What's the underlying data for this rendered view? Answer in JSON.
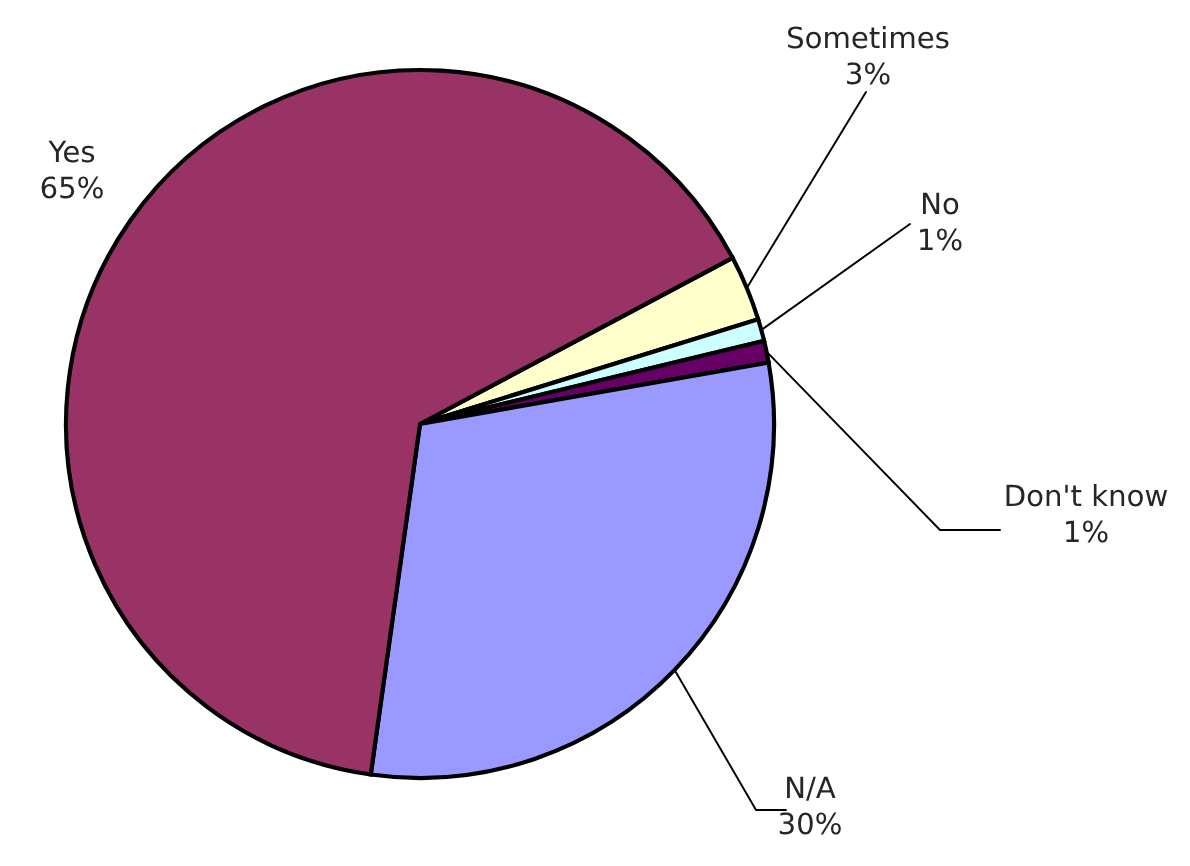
{
  "chart_data": {
    "type": "pie",
    "categories": [
      "Sometimes",
      "No",
      "Don't know",
      "N/A",
      "Yes"
    ],
    "values": [
      3,
      1,
      1,
      30,
      65
    ],
    "colors": [
      "#ffffcc",
      "#ccffff",
      "#660066",
      "#9999ff",
      "#993366"
    ],
    "value_labels": [
      "3%",
      "1%",
      "1%",
      "30%",
      "65%"
    ],
    "legend": false
  }
}
